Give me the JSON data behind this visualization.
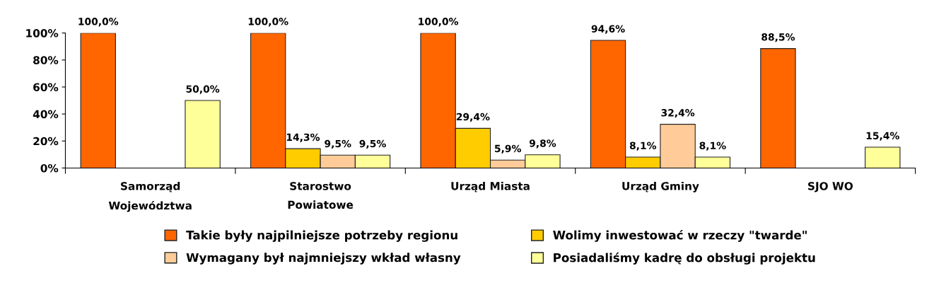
{
  "chart_data": {
    "type": "bar",
    "categories": [
      "Samorząd\nWojewództwa",
      "Starostwo\nPowiatowe",
      "Urząd Miasta",
      "Urząd Gminy",
      "SJO WO"
    ],
    "series": [
      {
        "name": "Takie były najpilniejsze potrzeby regionu",
        "color": "#ff6600",
        "values": [
          100.0,
          100.0,
          100.0,
          94.6,
          88.5
        ],
        "value_labels": [
          "100,0%",
          "100,0%",
          "100,0%",
          "94,6%",
          "88,5%"
        ]
      },
      {
        "name": "Wolimy inwestować w rzeczy \"twarde\"",
        "color": "#ffcc00",
        "values": [
          null,
          14.3,
          29.4,
          8.1,
          null
        ],
        "value_labels": [
          null,
          "14,3%",
          "29,4%",
          "8,1%",
          null
        ]
      },
      {
        "name": "Wymagany był najmniejszy wkład własny",
        "color": "#ffcc99",
        "values": [
          null,
          9.5,
          5.9,
          32.4,
          null
        ],
        "value_labels": [
          null,
          "9,5%",
          "5,9%",
          "32,4%",
          null
        ]
      },
      {
        "name": "Posiadaliśmy kadrę do obsługi projektu",
        "color": "#ffff99",
        "values": [
          50.0,
          9.5,
          9.8,
          8.1,
          15.4
        ],
        "value_labels": [
          "50,0%",
          "9,5%",
          "9,8%",
          "8,1%",
          "15,4%"
        ]
      }
    ],
    "ylim": [
      0,
      100
    ],
    "yticks": [
      {
        "value": 0,
        "label": "0%"
      },
      {
        "value": 20,
        "label": "20%"
      },
      {
        "value": 40,
        "label": "40%"
      },
      {
        "value": 60,
        "label": "60%"
      },
      {
        "value": 80,
        "label": "80%"
      },
      {
        "value": 100,
        "label": "100%"
      }
    ],
    "grid": false,
    "legend": "bottom"
  }
}
